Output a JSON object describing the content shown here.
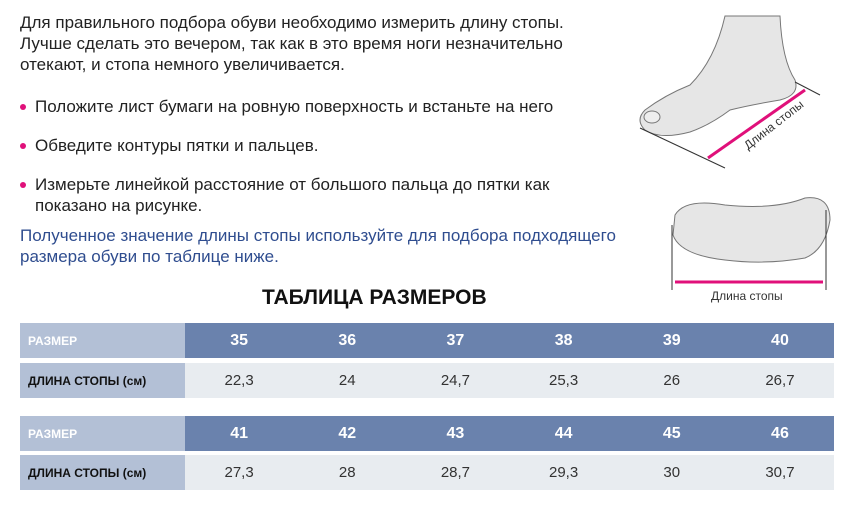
{
  "intro": "Для правильного подбора обуви необходимо измерить длину стопы. Лучше сделать это вечером, так как в это время ноги незначительно отекают, и стопа немного увеличивается.",
  "bullets": [
    "Положите лист бумаги на ровную поверхность и встаньте на него",
    "Обведите контуры пятки и пальцев.",
    "Измерьте линейкой расстояние от большого пальца до пятки как показано на рисунке."
  ],
  "note": "Полученное значение длины стопы используйте для подбора подходящего размера обуви по таблице ниже.",
  "illustrations": {
    "side_label": "Длина стопы",
    "sole_label": "Длина стопы"
  },
  "table": {
    "title": "ТАБЛИЦА РАЗМЕРОВ",
    "size_label": "РАЗМЕР",
    "length_label": "ДЛИНА СТОПЫ (см)",
    "blocks": [
      {
        "sizes": [
          "35",
          "36",
          "37",
          "38",
          "39",
          "40"
        ],
        "lengths": [
          "22,3",
          "24",
          "24,7",
          "25,3",
          "26",
          "26,7"
        ]
      },
      {
        "sizes": [
          "41",
          "42",
          "43",
          "44",
          "45",
          "46"
        ],
        "lengths": [
          "27,3",
          "28",
          "28,7",
          "29,3",
          "30",
          "30,7"
        ]
      }
    ]
  },
  "colors": {
    "accent": "#e0107a",
    "header": "#6a82ad",
    "label_col": "#b3c0d6",
    "note_text": "#2f4d8f"
  }
}
